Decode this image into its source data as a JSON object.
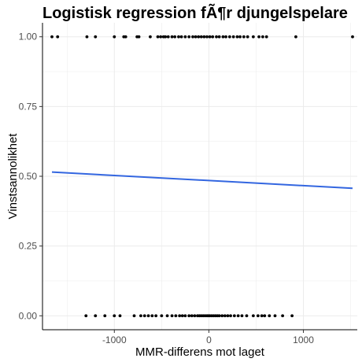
{
  "chart_data": {
    "type": "scatter",
    "title": "Logistisk regression fÃ¶r djungelspelare",
    "xlabel": "MMR-differens mot laget",
    "ylabel": "Vinstsannolikhet",
    "xlim": [
      -1760,
      1570
    ],
    "ylim": [
      -0.05,
      1.05
    ],
    "x_ticks": [
      -1000,
      0,
      1000
    ],
    "x_tick_labels": [
      "-1000",
      "0",
      "1000"
    ],
    "y_ticks": [
      0,
      0.25,
      0.5,
      0.75,
      1
    ],
    "y_tick_labels": [
      "0.00",
      "0.25",
      "0.50",
      "0.75",
      "1.00"
    ],
    "grid": true,
    "legend": "none",
    "colors": {
      "points": "#000000",
      "line": "#3366e0",
      "grid": "#ebebeb",
      "axis": "#000000"
    },
    "series": [
      {
        "kind": "points",
        "points": [
          [
            -1660,
            1
          ],
          [
            -1600,
            1
          ],
          [
            -1290,
            1
          ],
          [
            -1200,
            1
          ],
          [
            -1000,
            1
          ],
          [
            -900,
            1
          ],
          [
            -880,
            1
          ],
          [
            -760,
            1
          ],
          [
            -740,
            1
          ],
          [
            -620,
            1
          ],
          [
            -540,
            1
          ],
          [
            -510,
            1
          ],
          [
            -480,
            1
          ],
          [
            -460,
            1
          ],
          [
            -430,
            1
          ],
          [
            -390,
            1
          ],
          [
            -360,
            1
          ],
          [
            -320,
            1
          ],
          [
            -290,
            1
          ],
          [
            -250,
            1
          ],
          [
            -210,
            1
          ],
          [
            -170,
            1
          ],
          [
            -140,
            1
          ],
          [
            -110,
            1
          ],
          [
            -80,
            1
          ],
          [
            -50,
            1
          ],
          [
            -20,
            1
          ],
          [
            10,
            1
          ],
          [
            40,
            1
          ],
          [
            80,
            1
          ],
          [
            110,
            1
          ],
          [
            150,
            1
          ],
          [
            180,
            1
          ],
          [
            220,
            1
          ],
          [
            260,
            1
          ],
          [
            300,
            1
          ],
          [
            330,
            1
          ],
          [
            370,
            1
          ],
          [
            410,
            1
          ],
          [
            470,
            1
          ],
          [
            530,
            1
          ],
          [
            570,
            1
          ],
          [
            610,
            1
          ],
          [
            920,
            1
          ],
          [
            1520,
            1
          ],
          [
            -1300,
            0
          ],
          [
            -1200,
            0
          ],
          [
            -1100,
            0
          ],
          [
            -1000,
            0
          ],
          [
            -940,
            0
          ],
          [
            -790,
            0
          ],
          [
            -720,
            0
          ],
          [
            -680,
            0
          ],
          [
            -640,
            0
          ],
          [
            -600,
            0
          ],
          [
            -560,
            0
          ],
          [
            -500,
            0
          ],
          [
            -440,
            0
          ],
          [
            -390,
            0
          ],
          [
            -350,
            0
          ],
          [
            -310,
            0
          ],
          [
            -280,
            0
          ],
          [
            -250,
            0
          ],
          [
            -210,
            0
          ],
          [
            -180,
            0
          ],
          [
            -150,
            0
          ],
          [
            -120,
            0
          ],
          [
            -100,
            0
          ],
          [
            -80,
            0
          ],
          [
            -60,
            0
          ],
          [
            -40,
            0
          ],
          [
            -20,
            0
          ],
          [
            -5,
            0
          ],
          [
            10,
            0
          ],
          [
            30,
            0
          ],
          [
            50,
            0
          ],
          [
            70,
            0
          ],
          [
            90,
            0
          ],
          [
            110,
            0
          ],
          [
            140,
            0
          ],
          [
            170,
            0
          ],
          [
            200,
            0
          ],
          [
            230,
            0
          ],
          [
            270,
            0
          ],
          [
            310,
            0
          ],
          [
            350,
            0
          ],
          [
            400,
            0
          ],
          [
            470,
            0
          ],
          [
            520,
            0
          ],
          [
            560,
            0
          ],
          [
            590,
            0
          ],
          [
            640,
            0
          ],
          [
            700,
            0
          ],
          [
            780,
            0
          ],
          [
            880,
            0
          ]
        ]
      },
      {
        "kind": "fit-line",
        "x": [
          -1660,
          1520
        ],
        "y": [
          0.515,
          0.457
        ]
      }
    ]
  }
}
